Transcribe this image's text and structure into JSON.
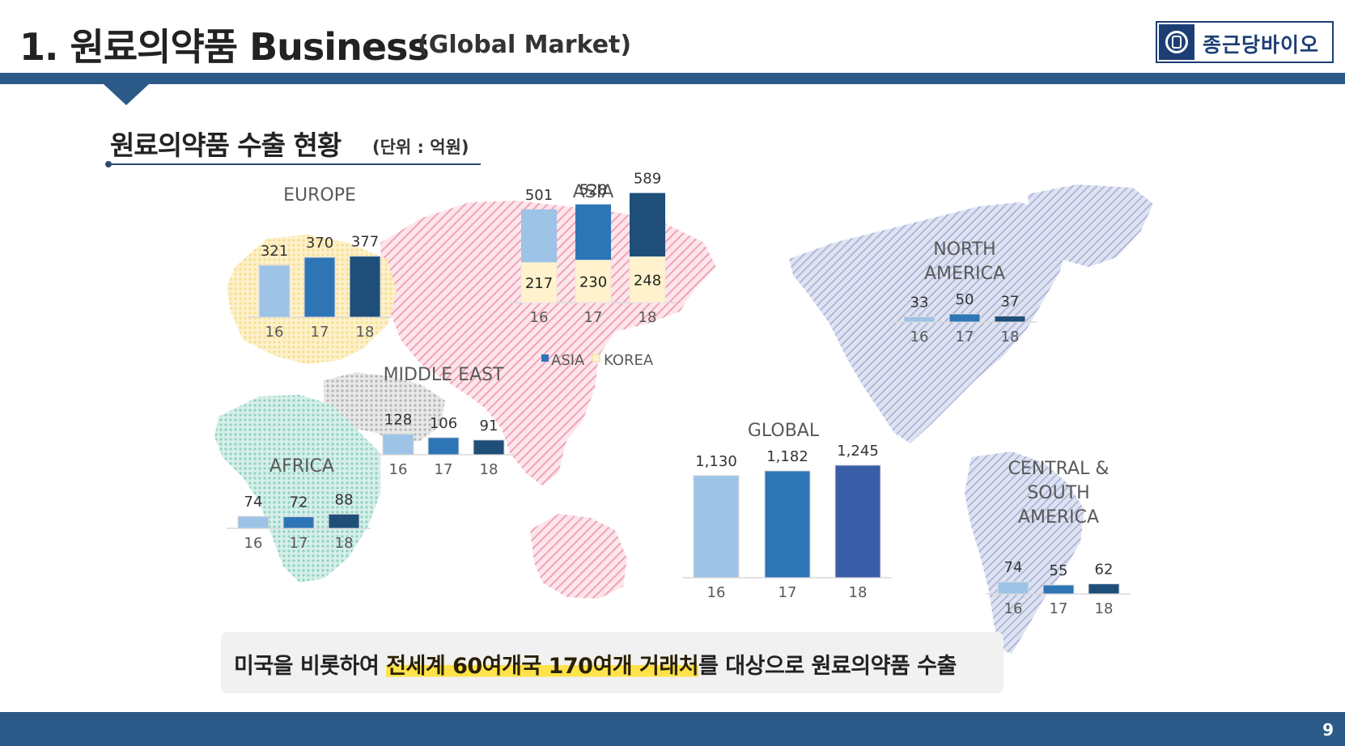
{
  "header": {
    "title": "1. 원료의약품 Business",
    "subtitle": "(Global Market)",
    "logo_text": "종근당바이오"
  },
  "section": {
    "title": "원료의약품 수출 현황",
    "unit": "(단위 : 억원)"
  },
  "callout": {
    "prefix": "미국을 비롯하여 ",
    "highlight": "전세계 60여개국 170여개 거래처",
    "suffix": "를 대상으로 원료의약품 수출"
  },
  "page_number": "9",
  "colors": {
    "y16": "#9dc3e6",
    "y17": "#2e75b6",
    "y18": "#1f4e79",
    "global18": "#3a5da8",
    "korea": "#fff2cc",
    "brand": "#2c5a88",
    "highlight": "#ffe24a"
  },
  "chart_data": [
    {
      "type": "bar",
      "title": "EUROPE",
      "categories": [
        "16",
        "17",
        "18"
      ],
      "values": [
        321,
        370,
        377
      ],
      "value_labels": [
        "321",
        "370",
        "377"
      ]
    },
    {
      "type": "bar",
      "title": "ASIA",
      "stacked": true,
      "categories": [
        "16",
        "17",
        "18"
      ],
      "totals": [
        501,
        528,
        589
      ],
      "total_labels": [
        "501",
        "528",
        "589"
      ],
      "legend": [
        "ASIA",
        "KOREA"
      ],
      "series": [
        {
          "name": "KOREA",
          "values": [
            217,
            230,
            248
          ],
          "labels": [
            "217",
            "230",
            "248"
          ]
        },
        {
          "name": "ASIA",
          "values": [
            284,
            298,
            341
          ]
        }
      ]
    },
    {
      "type": "bar",
      "title": "MIDDLE EAST",
      "categories": [
        "16",
        "17",
        "18"
      ],
      "values": [
        128,
        106,
        91
      ],
      "value_labels": [
        "128",
        "106",
        "91"
      ]
    },
    {
      "type": "bar",
      "title": "AFRICA",
      "categories": [
        "16",
        "17",
        "18"
      ],
      "values": [
        74,
        72,
        88
      ],
      "value_labels": [
        "74",
        "72",
        "88"
      ]
    },
    {
      "type": "bar",
      "title": "GLOBAL",
      "categories": [
        "16",
        "17",
        "18"
      ],
      "values": [
        1130,
        1182,
        1245
      ],
      "value_labels": [
        "1,130",
        "1,182",
        "1,245"
      ]
    },
    {
      "type": "bar",
      "title": "NORTH AMERICA",
      "title_lines": [
        "NORTH",
        "AMERICA"
      ],
      "categories": [
        "16",
        "17",
        "18"
      ],
      "values": [
        33,
        50,
        37
      ],
      "value_labels": [
        "33",
        "50",
        "37"
      ]
    },
    {
      "type": "bar",
      "title": "CENTRAL & SOUTH AMERICA",
      "title_lines": [
        "CENTRAL &",
        "SOUTH",
        "AMERICA"
      ],
      "categories": [
        "16",
        "17",
        "18"
      ],
      "values": [
        74,
        55,
        62
      ],
      "value_labels": [
        "74",
        "55",
        "62"
      ]
    }
  ]
}
